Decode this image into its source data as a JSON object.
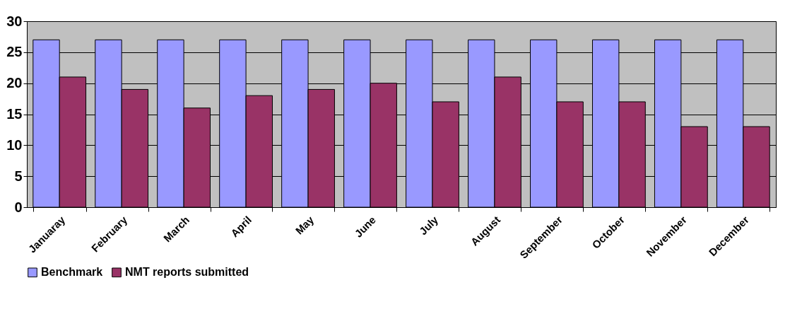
{
  "chart_data": {
    "type": "bar",
    "categories": [
      "Januaray",
      "February",
      "March",
      "April",
      "May",
      "June",
      "July",
      "August",
      "September",
      "October",
      "November",
      "December"
    ],
    "series": [
      {
        "name": "Benchmark",
        "color": "#9999ff",
        "values": [
          27,
          27,
          27,
          27,
          27,
          27,
          27,
          27,
          27,
          27,
          27,
          27
        ]
      },
      {
        "name": "NMT reports submitted",
        "color": "#993366",
        "values": [
          21,
          19,
          16,
          18,
          19,
          20,
          17,
          21,
          17,
          17,
          13,
          13
        ]
      }
    ],
    "ylim": [
      0,
      30
    ],
    "yticks": [
      0,
      5,
      10,
      15,
      20,
      25,
      30
    ],
    "grid": "y",
    "legend": "bottom"
  }
}
